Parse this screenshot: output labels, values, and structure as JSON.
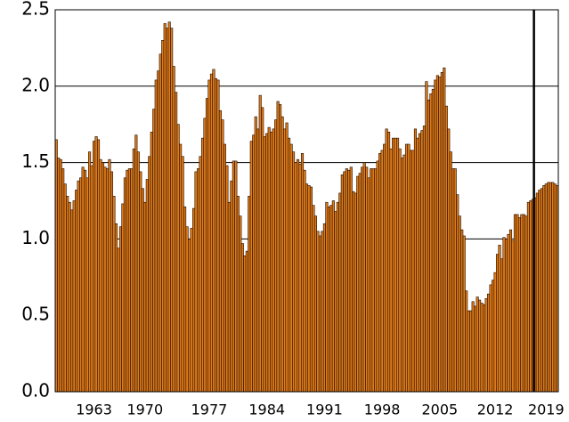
{
  "chart_data": {
    "type": "bar",
    "categories": [
      null,
      null,
      null,
      null,
      null,
      null,
      null,
      null,
      null,
      null,
      null,
      null,
      null,
      null,
      null,
      null,
      null,
      "1963",
      null,
      null,
      null,
      null,
      null,
      null,
      null,
      null,
      null,
      null,
      null,
      null,
      null,
      null,
      null,
      null,
      null,
      null,
      null,
      null,
      null,
      null,
      "1970",
      null,
      null,
      null,
      null,
      null,
      null,
      null,
      null,
      null,
      null,
      null,
      null,
      null,
      null,
      null,
      null,
      null,
      null,
      null,
      null,
      null,
      null,
      null,
      null,
      null,
      null,
      null,
      null,
      "1977",
      null,
      null,
      null,
      null,
      null,
      null,
      null,
      null,
      null,
      null,
      null,
      null,
      null,
      null,
      null,
      null,
      null,
      null,
      null,
      null,
      null,
      null,
      null,
      null,
      null,
      "1984",
      null,
      null,
      null,
      null,
      null,
      null,
      null,
      null,
      null,
      null,
      null,
      null,
      null,
      null,
      null,
      null,
      null,
      null,
      null,
      null,
      null,
      null,
      null,
      null,
      null,
      "1991",
      null,
      null,
      null,
      null,
      null,
      null,
      null,
      null,
      null,
      null,
      null,
      null,
      null,
      null,
      null,
      null,
      null,
      null,
      null,
      null,
      null,
      null,
      null,
      null,
      null,
      "1998",
      null,
      null,
      null,
      null,
      null,
      null,
      null,
      null,
      null,
      null,
      null,
      null,
      null,
      null,
      null,
      null,
      null,
      null,
      null,
      null,
      null,
      null,
      null,
      null,
      null,
      "2005",
      null,
      null,
      null,
      null,
      null,
      null,
      null,
      null,
      null,
      null,
      null,
      null,
      null,
      null,
      null,
      null,
      null,
      null,
      null,
      null,
      null,
      null,
      null,
      null,
      "2012",
      null,
      null,
      null,
      null,
      null,
      null,
      null,
      null,
      null,
      null,
      null,
      null,
      null,
      null,
      null,
      null,
      null,
      null,
      null,
      null,
      null,
      null,
      "2019",
      null,
      null,
      null,
      null,
      null
    ],
    "values": [
      1.65,
      1.53,
      1.52,
      1.46,
      1.36,
      1.28,
      1.24,
      1.19,
      1.25,
      1.32,
      1.38,
      1.4,
      1.47,
      1.45,
      1.4,
      1.57,
      1.48,
      1.64,
      1.67,
      1.65,
      1.52,
      1.5,
      1.47,
      1.46,
      1.52,
      1.44,
      1.28,
      1.1,
      0.94,
      1.08,
      1.23,
      1.4,
      1.45,
      1.46,
      1.46,
      1.59,
      1.68,
      1.57,
      1.44,
      1.33,
      1.24,
      1.39,
      1.54,
      1.7,
      1.85,
      2.04,
      2.1,
      2.21,
      2.3,
      2.41,
      2.38,
      2.42,
      2.38,
      2.13,
      1.96,
      1.75,
      1.62,
      1.54,
      1.21,
      1.08,
      1.0,
      1.07,
      1.2,
      1.44,
      1.46,
      1.54,
      1.66,
      1.79,
      1.92,
      2.04,
      2.08,
      2.11,
      2.05,
      2.04,
      1.84,
      1.78,
      1.62,
      1.48,
      1.24,
      1.38,
      1.51,
      1.51,
      1.28,
      1.15,
      0.97,
      0.89,
      0.92,
      1.28,
      1.64,
      1.68,
      1.8,
      1.72,
      1.94,
      1.86,
      1.67,
      1.69,
      1.73,
      1.7,
      1.72,
      1.78,
      1.9,
      1.88,
      1.8,
      1.72,
      1.76,
      1.66,
      1.62,
      1.57,
      1.5,
      1.52,
      1.49,
      1.56,
      1.45,
      1.36,
      1.35,
      1.34,
      1.22,
      1.15,
      1.05,
      1.02,
      1.05,
      1.1,
      1.24,
      1.21,
      1.22,
      1.25,
      1.18,
      1.24,
      1.3,
      1.42,
      1.44,
      1.46,
      1.45,
      1.47,
      1.31,
      1.3,
      1.41,
      1.43,
      1.47,
      1.5,
      1.47,
      1.4,
      1.46,
      1.46,
      1.46,
      1.51,
      1.56,
      1.58,
      1.62,
      1.72,
      1.7,
      1.59,
      1.66,
      1.66,
      1.66,
      1.59,
      1.53,
      1.55,
      1.62,
      1.62,
      1.58,
      1.58,
      1.72,
      1.66,
      1.69,
      1.71,
      1.74,
      2.03,
      1.91,
      1.95,
      1.98,
      2.04,
      2.07,
      2.06,
      2.09,
      2.12,
      1.87,
      1.72,
      1.57,
      1.46,
      1.46,
      1.29,
      1.15,
      1.06,
      1.02,
      0.66,
      0.53,
      0.53,
      0.59,
      0.56,
      0.62,
      0.6,
      0.58,
      0.57,
      0.61,
      0.64,
      0.7,
      0.73,
      0.78,
      0.9,
      0.96,
      0.87,
      1.01,
      1.0,
      1.03,
      1.06,
      0.99,
      1.16,
      1.16,
      1.14,
      1.16,
      1.16,
      1.15,
      1.24,
      1.25,
      1.26,
      1.27,
      1.3,
      1.32,
      1.33,
      1.35,
      1.36,
      1.37,
      1.37,
      1.37,
      1.36,
      1.35
    ],
    "color": "#e07b1a",
    "ylim": [
      0,
      2.5
    ],
    "yticks": [
      {
        "value": 0,
        "label": "0.0"
      },
      0.5,
      {
        "value": 1,
        "label": "1.0"
      },
      1.5,
      {
        "value": 2,
        "label": "2.0"
      },
      2.5
    ],
    "grid": true,
    "vline_at_bar": 216
  }
}
